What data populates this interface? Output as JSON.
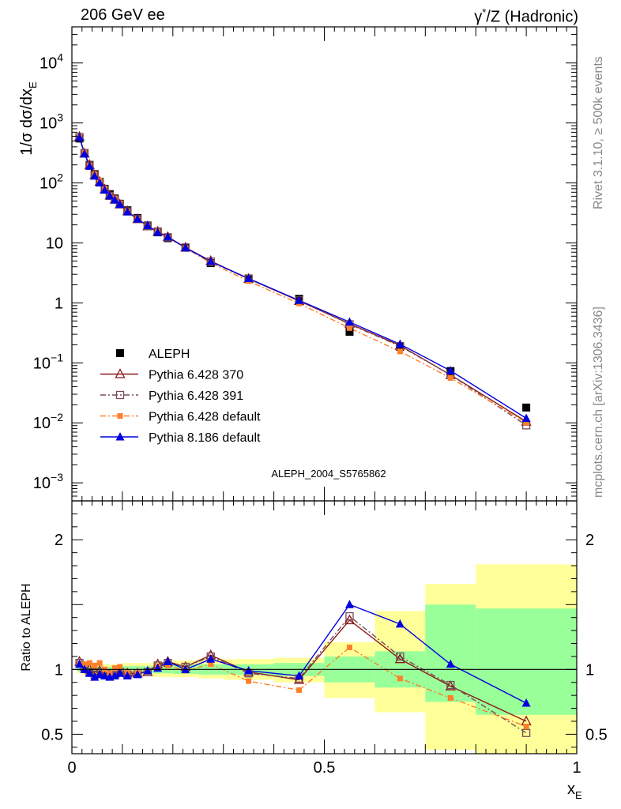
{
  "header": {
    "left": "206 GeV ee",
    "right_gamma": "γ",
    "right_star": "*",
    "right_rest": "/Z (Hadronic)"
  },
  "side_text": {
    "rivet": "Rivet 3.1.10, ≥ 500k events",
    "mcplots": "mcplots.cern.ch [arXiv:1306.3436]"
  },
  "watermark": "ALEPH_2004_S5765862",
  "colors": {
    "ALEPH": "#000000",
    "p370": "#8b1a1a",
    "p391": "#7a4a5a",
    "pdef": "#ff7f2a",
    "p8": "#0000e0",
    "band_outer": "#ffff99",
    "band_inner": "#99ff99"
  },
  "chart_data": [
    {
      "type": "scatter",
      "panel": "main",
      "ylabel": "1/σ dσ/dx",
      "ylabel_sub": "E",
      "yscale": "log",
      "ylim": [
        0.0005,
        40000
      ],
      "xlim": [
        0,
        1
      ],
      "y_ticks": [
        {
          "v": 10000,
          "base": "10",
          "exp": "4"
        },
        {
          "v": 1000,
          "base": "10",
          "exp": "3"
        },
        {
          "v": 100,
          "base": "10",
          "exp": "2"
        },
        {
          "v": 10,
          "base": "10",
          "exp": ""
        },
        {
          "v": 1,
          "base": "1",
          "exp": ""
        },
        {
          "v": 0.1,
          "base": "10",
          "exp": "−1"
        },
        {
          "v": 0.01,
          "base": "10",
          "exp": "−2"
        },
        {
          "v": 0.001,
          "base": "10",
          "exp": "−3"
        }
      ],
      "x": [
        0.015,
        0.025,
        0.035,
        0.045,
        0.055,
        0.065,
        0.075,
        0.085,
        0.095,
        0.11,
        0.13,
        0.15,
        0.17,
        0.19,
        0.225,
        0.275,
        0.35,
        0.45,
        0.55,
        0.65,
        0.75,
        0.9
      ],
      "series": [
        {
          "name": "ALEPH",
          "key": "ALEPH",
          "marker": "filled-square",
          "line": "none",
          "values": [
            550,
            310,
            200,
            140,
            105,
            80,
            65,
            55,
            45,
            35,
            26,
            19.5,
            15,
            12,
            8.3,
            4.6,
            2.55,
            1.17,
            0.33,
            0.185,
            0.073,
            0.018
          ]
        },
        {
          "name": "Pythia 6.428 370",
          "key": "p370",
          "marker": "open-triangle",
          "line": "solid",
          "values": [
            590,
            310,
            200,
            135,
            105,
            78,
            62,
            53,
            44,
            34,
            25,
            19,
            15.5,
            12.6,
            8.4,
            5.0,
            2.52,
            1.08,
            0.45,
            0.195,
            0.063,
            0.0105
          ]
        },
        {
          "name": "Pythia 6.428 391",
          "key": "p391",
          "marker": "open-square",
          "line": "dashdot",
          "values": [
            580,
            315,
            195,
            134,
            102,
            78,
            61,
            53,
            44,
            33.5,
            25,
            19,
            15.5,
            12.4,
            8.4,
            4.9,
            2.5,
            1.1,
            0.44,
            0.19,
            0.063,
            0.0091
          ]
        },
        {
          "name": "Pythia 6.428 default",
          "key": "pdef",
          "marker": "filled-square-small",
          "line": "dashdot",
          "values": [
            575,
            320,
            195,
            140,
            110,
            80,
            62,
            55,
            46,
            33.5,
            25,
            19,
            15.5,
            12.3,
            8.2,
            4.65,
            2.3,
            0.98,
            0.38,
            0.155,
            0.056,
            0.0101
          ]
        },
        {
          "name": "Pythia 8.186 default",
          "key": "p8",
          "marker": "filled-triangle",
          "line": "solid",
          "values": [
            570,
            305,
            190,
            130,
            100,
            76,
            61,
            52,
            44,
            33,
            25,
            19.5,
            15,
            12.6,
            8.3,
            4.9,
            2.55,
            1.1,
            0.48,
            0.205,
            0.074,
            0.0119
          ]
        }
      ]
    },
    {
      "type": "scatter",
      "panel": "ratio",
      "ylabel": "Ratio to ALEPH",
      "xlabel": "x",
      "xlabel_sub": "E",
      "ylim": [
        0.35,
        2.3
      ],
      "xlim": [
        0,
        1
      ],
      "y_ticks": [
        {
          "v": 2,
          "label": "2"
        },
        {
          "v": 1,
          "label": "1"
        },
        {
          "v": 0.5,
          "label": "0.5"
        }
      ],
      "x_ticks": [
        {
          "v": 0,
          "label": "0"
        },
        {
          "v": 0.5,
          "label": "0.5"
        },
        {
          "v": 1,
          "label": "1"
        }
      ],
      "bands": [
        {
          "x0": 0.01,
          "x1": 0.02,
          "outer": [
            0.97,
            1.03
          ],
          "inner": [
            0.985,
            1.015
          ]
        },
        {
          "x0": 0.02,
          "x1": 0.1,
          "outer": [
            0.96,
            1.04
          ],
          "inner": [
            0.98,
            1.02
          ]
        },
        {
          "x0": 0.1,
          "x1": 0.16,
          "outer": [
            0.95,
            1.05
          ],
          "inner": [
            0.975,
            1.025
          ]
        },
        {
          "x0": 0.16,
          "x1": 0.2,
          "outer": [
            0.94,
            1.06
          ],
          "inner": [
            0.97,
            1.03
          ]
        },
        {
          "x0": 0.2,
          "x1": 0.25,
          "outer": [
            0.94,
            1.07
          ],
          "inner": [
            0.965,
            1.035
          ]
        },
        {
          "x0": 0.25,
          "x1": 0.3,
          "outer": [
            0.93,
            1.08
          ],
          "inner": [
            0.96,
            1.04
          ]
        },
        {
          "x0": 0.3,
          "x1": 0.4,
          "outer": [
            0.92,
            1.08
          ],
          "inner": [
            0.96,
            1.04
          ]
        },
        {
          "x0": 0.4,
          "x1": 0.5,
          "outer": [
            0.9,
            1.09
          ],
          "inner": [
            0.95,
            1.05
          ]
        },
        {
          "x0": 0.5,
          "x1": 0.6,
          "outer": [
            0.78,
            1.21
          ],
          "inner": [
            0.9,
            1.1
          ]
        },
        {
          "x0": 0.6,
          "x1": 0.7,
          "outer": [
            0.67,
            1.45
          ],
          "inner": [
            0.86,
            1.14
          ]
        },
        {
          "x0": 0.7,
          "x1": 0.8,
          "outer": [
            0.38,
            1.66
          ],
          "inner": [
            0.75,
            1.5
          ]
        },
        {
          "x0": 0.8,
          "x1": 1.0,
          "outer": [
            0.35,
            1.81
          ],
          "inner": [
            0.65,
            1.47
          ]
        }
      ],
      "x": [
        0.015,
        0.025,
        0.035,
        0.045,
        0.055,
        0.065,
        0.075,
        0.085,
        0.095,
        0.11,
        0.13,
        0.15,
        0.17,
        0.19,
        0.225,
        0.275,
        0.35,
        0.45,
        0.55,
        0.65,
        0.75,
        0.9
      ],
      "series": [
        {
          "name": "Pythia 6.428 370",
          "key": "p370",
          "marker": "open-triangle",
          "line": "solid",
          "values": [
            1.06,
            1.02,
            1.0,
            0.98,
            0.99,
            0.97,
            0.96,
            0.97,
            0.98,
            0.97,
            0.97,
            0.98,
            1.04,
            1.06,
            1.02,
            1.11,
            0.98,
            0.92,
            1.38,
            1.08,
            0.87,
            0.6
          ]
        },
        {
          "name": "Pythia 6.428 391",
          "key": "p391",
          "marker": "open-square",
          "line": "dashdot",
          "values": [
            1.05,
            1.02,
            0.98,
            0.96,
            0.98,
            0.97,
            0.95,
            0.96,
            0.98,
            0.96,
            0.97,
            0.98,
            1.03,
            1.05,
            1.02,
            1.1,
            0.97,
            0.93,
            1.41,
            1.1,
            0.88,
            0.51
          ]
        },
        {
          "name": "Pythia 6.428 default",
          "key": "pdef",
          "marker": "filled-square-small",
          "line": "dashdot",
          "values": [
            1.04,
            1.04,
            1.05,
            1.03,
            1.05,
            1.0,
            0.97,
            1.01,
            1.02,
            0.98,
            0.98,
            0.98,
            1.02,
            1.03,
            0.99,
            1.04,
            0.91,
            0.84,
            1.17,
            0.93,
            0.78,
            0.56
          ]
        },
        {
          "name": "Pythia 8.186 default",
          "key": "p8",
          "marker": "filled-triangle",
          "line": "solid",
          "values": [
            1.04,
            1.0,
            0.97,
            0.94,
            0.96,
            0.95,
            0.94,
            0.95,
            0.97,
            0.95,
            0.96,
            0.99,
            1.01,
            1.06,
            1.0,
            1.08,
            0.99,
            0.95,
            1.5,
            1.35,
            1.04,
            0.74
          ]
        }
      ]
    }
  ]
}
